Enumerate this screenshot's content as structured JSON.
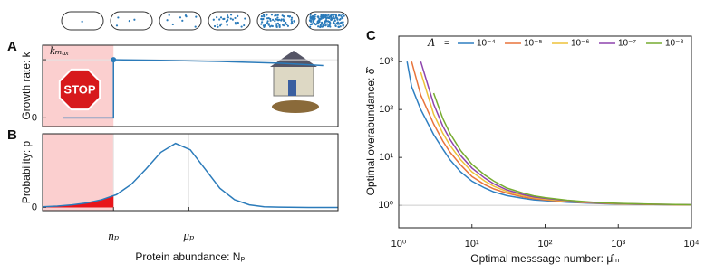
{
  "chart_data": [
    {
      "panel": "A",
      "type": "line",
      "ylabel": "Growth rate: k",
      "xlim": [
        0,
        10
      ],
      "ylim": [
        -0.15,
        1.25
      ],
      "yticks": [
        0,
        {
          "value": 1,
          "label": "kₘₐₓ"
        }
      ],
      "shade": {
        "xlim": [
          0,
          2.4
        ],
        "color": "#fbcfcf"
      },
      "annotation": "STOP",
      "color": "#2b7bba",
      "x": [
        0.7,
        2.4,
        2.4,
        4,
        6,
        8,
        9.5
      ],
      "values": [
        0,
        0,
        1,
        0.99,
        0.97,
        0.94,
        0.9
      ],
      "grid": true
    },
    {
      "panel": "B",
      "type": "line",
      "ylabel": "Probability: p",
      "xlabel": "Protein abundance: Nₚ",
      "xlim": [
        0,
        10
      ],
      "ylim": [
        -0.05,
        1.15
      ],
      "yticks": [
        0
      ],
      "xticks": [
        {
          "value": 2.4,
          "label": "nₚ"
        },
        {
          "value": 4.95,
          "label": "μₚ"
        }
      ],
      "shade": {
        "xlim": [
          0,
          2.4
        ],
        "color": "#fbcfcf"
      },
      "fill_below_color": "#e8141a",
      "color": "#2b7bba",
      "x": [
        0,
        0.5,
        1,
        1.5,
        2,
        2.5,
        3,
        3.5,
        4,
        4.5,
        5,
        5.5,
        6,
        6.5,
        7,
        7.5,
        8,
        9,
        10
      ],
      "values": [
        0.01,
        0.02,
        0.04,
        0.07,
        0.12,
        0.2,
        0.36,
        0.6,
        0.86,
        1.0,
        0.9,
        0.6,
        0.3,
        0.12,
        0.04,
        0.01,
        0.005,
        0,
        0
      ],
      "grid": true
    },
    {
      "panel": "C",
      "type": "line",
      "xlog": true,
      "ylog": true,
      "xlabel": "Optimal messsage number: μ̂ₘ",
      "ylabel": "Optimal overabundance: δ̂",
      "xlim": [
        1,
        10000
      ],
      "ylim": [
        0.34,
        3400
      ],
      "xticks": [
        {
          "value": 1,
          "label": "10⁰"
        },
        {
          "value": 10,
          "label": "10¹"
        },
        {
          "value": 100,
          "label": "10²"
        },
        {
          "value": 1000,
          "label": "10³"
        },
        {
          "value": 10000,
          "label": "10⁴"
        }
      ],
      "yticks": [
        {
          "value": 1,
          "label": "10⁰"
        },
        {
          "value": 10,
          "label": "10¹"
        },
        {
          "value": 100,
          "label": "10²"
        },
        {
          "value": 1000,
          "label": "10³"
        }
      ],
      "hline": 1,
      "legend_title": "Λ",
      "legend_sep": "=",
      "x": [
        1.3,
        1.5,
        2,
        3,
        4,
        5,
        7,
        10,
        15,
        20,
        30,
        50,
        70,
        100,
        200,
        500,
        1000,
        3000,
        10000
      ],
      "series": [
        {
          "name": "10⁻⁴",
          "color": "#2f7fc1",
          "values": [
            1000,
            300,
            100,
            30,
            15,
            9,
            5,
            3.2,
            2.3,
            1.9,
            1.6,
            1.4,
            1.3,
            1.25,
            1.16,
            1.09,
            1.06,
            1.04,
            1.02
          ]
        },
        {
          "name": "10⁻⁵",
          "color": "#e8743b",
          "values": [
            null,
            1000,
            200,
            50,
            22,
            13,
            7,
            4,
            2.7,
            2.2,
            1.8,
            1.5,
            1.38,
            1.3,
            1.19,
            1.11,
            1.07,
            1.04,
            1.02
          ]
        },
        {
          "name": "10⁻⁶",
          "color": "#edc23a",
          "values": [
            null,
            null,
            600,
            80,
            32,
            18,
            9,
            5,
            3.2,
            2.5,
            1.95,
            1.6,
            1.45,
            1.35,
            1.22,
            1.12,
            1.08,
            1.05,
            1.02
          ]
        },
        {
          "name": "10⁻⁷",
          "color": "#8e44ad",
          "values": [
            null,
            null,
            1000,
            130,
            45,
            24,
            11,
            6,
            3.7,
            2.8,
            2.1,
            1.68,
            1.5,
            1.4,
            1.25,
            1.13,
            1.09,
            1.05,
            1.03
          ]
        },
        {
          "name": "10⁻⁸",
          "color": "#77ac30",
          "values": [
            null,
            null,
            null,
            220,
            65,
            32,
            14,
            7.2,
            4.3,
            3.2,
            2.3,
            1.8,
            1.58,
            1.45,
            1.28,
            1.15,
            1.1,
            1.06,
            1.03
          ]
        }
      ]
    }
  ]
}
